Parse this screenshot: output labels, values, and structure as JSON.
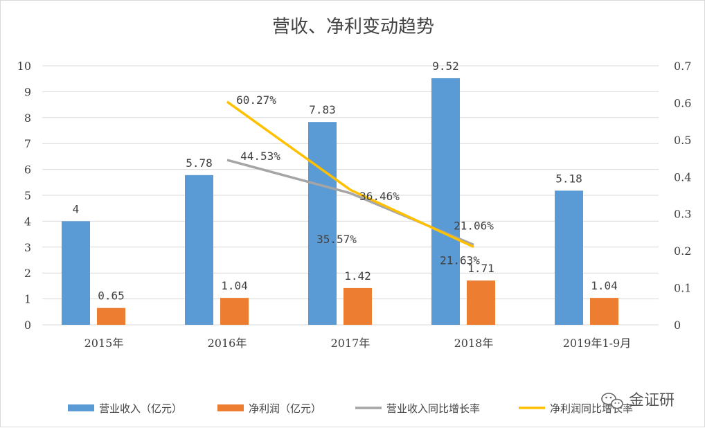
{
  "chart_data": {
    "type": "bar",
    "title": "营收、净利变动趋势",
    "categories": [
      "2015年",
      "2016年",
      "2017年",
      "2018年",
      "2019年1-9月"
    ],
    "y_left": {
      "range": [
        0,
        10
      ],
      "ticks": [
        "0",
        "1",
        "2",
        "3",
        "4",
        "5",
        "6",
        "7",
        "8",
        "9",
        "10"
      ]
    },
    "y_right": {
      "range": [
        0,
        0.7
      ],
      "ticks": [
        "0",
        "0.1",
        "0.2",
        "0.3",
        "0.4",
        "0.5",
        "0.6",
        "0.7"
      ]
    },
    "grid": true,
    "legend_position": "bottom",
    "series": [
      {
        "name": "营业收入（亿元）",
        "type": "bar",
        "axis": "left",
        "color": "#5b9bd5",
        "values": [
          4,
          5.78,
          7.83,
          9.52,
          5.18
        ],
        "labels": [
          "4",
          "5.78",
          "7.83",
          "9.52",
          "5.18"
        ]
      },
      {
        "name": "净利润（亿元）",
        "type": "bar",
        "axis": "left",
        "color": "#ed7d31",
        "values": [
          0.65,
          1.04,
          1.42,
          1.71,
          1.04
        ],
        "labels": [
          "0.65",
          "1.04",
          "1.42",
          "1.71",
          "1.04"
        ]
      },
      {
        "name": "营业收入同比增长率",
        "type": "line",
        "axis": "right",
        "color": "#a5a5a5",
        "values": [
          null,
          0.4453,
          0.3557,
          0.2163,
          null
        ],
        "labels": [
          null,
          "44.53%",
          "35.57%",
          "21.63%",
          null
        ]
      },
      {
        "name": "净利润同比增长率",
        "type": "line",
        "axis": "right",
        "color": "#ffc000",
        "values": [
          null,
          0.6027,
          0.3646,
          0.2106,
          null
        ],
        "labels": [
          null,
          "60.27%",
          "36.46%",
          "21.06%",
          null
        ]
      }
    ]
  },
  "watermark": {
    "text": "金证研"
  }
}
